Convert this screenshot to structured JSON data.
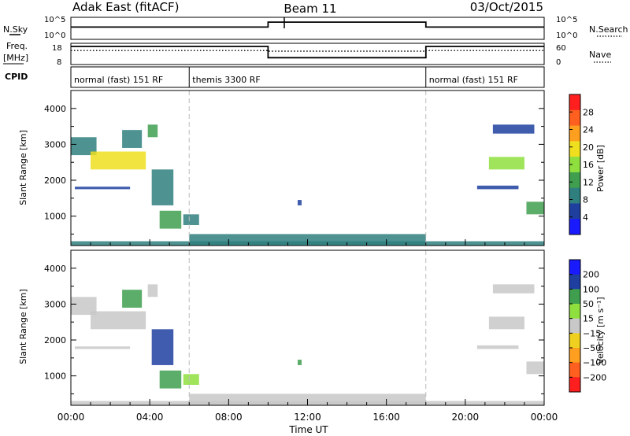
{
  "header": {
    "title": "Adak East (fitACF)",
    "beam": "Beam 11",
    "date": "03/Oct/2015"
  },
  "nsky_panel": {
    "left_label": "N.Sky",
    "right_label": "N.Search",
    "y_ticks": [
      "10^5",
      "10^0"
    ],
    "ylim": [
      1,
      100000
    ],
    "scale": "log"
  },
  "freq_panel": {
    "left_label_1": "Freq.",
    "left_label_2": "[MHz]",
    "right_label": "Nave",
    "left_ticks": [
      "18",
      "8"
    ],
    "right_ticks": [
      "60",
      "0"
    ]
  },
  "cpid_panel": {
    "label": "CPID",
    "segments": [
      {
        "start": 0,
        "end": 6,
        "text": "normal (fast) 151 RF"
      },
      {
        "start": 6,
        "end": 18,
        "text": "themis 3300 RF"
      },
      {
        "start": 18,
        "end": 24,
        "text": "normal (fast) 151 RF"
      }
    ]
  },
  "colors": {
    "power_scale": [
      "#1a1aff",
      "#1f3f9f",
      "#2f7f7f",
      "#3f9f4f",
      "#8fdf3f",
      "#efdf1f",
      "#ff9f1f",
      "#ff5f1f",
      "#ff1f1f"
    ],
    "velocity_scale": [
      "#ff1f1f",
      "#ff5f1f",
      "#ff9f1f",
      "#efcf1f",
      "#c8c8c8",
      "#8fdf3f",
      "#3f9f4f",
      "#1f3fa0",
      "#1a1aff"
    ],
    "grid_dash": "#bbbbbb"
  },
  "power_panel": {
    "ylabel": "Slant Range [km]",
    "y_ticks": [
      "4000",
      "3000",
      "2000",
      "1000"
    ],
    "colorbar_label": "Power [dB]",
    "colorbar_ticks": [
      "28",
      "24",
      "20",
      "16",
      "12",
      "8",
      "4"
    ]
  },
  "velocity_panel": {
    "ylabel": "Slant Range [km]",
    "y_ticks": [
      "4000",
      "3000",
      "2000",
      "1000"
    ],
    "colorbar_label": "Velocity [m s⁻¹]",
    "colorbar_ticks": [
      "200",
      "100",
      "50",
      "15",
      "−15",
      "−50",
      "−100",
      "−200"
    ]
  },
  "time_axis": {
    "xlabel": "Time UT",
    "ticks": [
      "00:00",
      "04:00",
      "08:00",
      "12:00",
      "16:00",
      "20:00",
      "00:00"
    ]
  },
  "chart_data": {
    "type": "heatmap",
    "title": "Adak East (fitACF)",
    "subtitle": "Beam 11",
    "date": "03/Oct/2015",
    "xlabel": "Time UT",
    "ylabel": "Slant Range [km]",
    "xlim_hours": [
      0,
      24
    ],
    "ylim_km": [
      180,
      4500
    ],
    "mode_change_hours": [
      6,
      18
    ],
    "nsky_series": [
      {
        "t": [
          0,
          10,
          10,
          18,
          18,
          24
        ],
        "v": [
          600,
          600,
          8000,
          8000,
          600,
          600
        ]
      }
    ],
    "freq_series": {
      "name": "Freq. [MHz]",
      "t": [
        0,
        10,
        10,
        18,
        18,
        24
      ],
      "v": [
        17.2,
        17.2,
        11.5,
        11.5,
        17.2,
        17.2
      ]
    },
    "nave_series": {
      "name": "Nave",
      "t": [
        0,
        10,
        10,
        18,
        18,
        24
      ],
      "v": [
        42,
        42,
        40,
        40,
        42,
        42
      ]
    },
    "echo_regions": [
      {
        "t0": 0.0,
        "t1": 1.3,
        "r0": 2700,
        "r1": 3200,
        "power": 10,
        "velocity": -5
      },
      {
        "t0": 1.0,
        "t1": 3.8,
        "r0": 2300,
        "r1": 2800,
        "power": 21,
        "velocity": 0
      },
      {
        "t0": 2.6,
        "t1": 3.6,
        "r0": 2900,
        "r1": 3400,
        "power": 8,
        "velocity": 150
      },
      {
        "t0": 3.9,
        "t1": 4.4,
        "r0": 3200,
        "r1": 3550,
        "power": 11,
        "velocity": 10
      },
      {
        "t0": 0.2,
        "t1": 3.0,
        "r0": 1750,
        "r1": 1820,
        "power": 7,
        "velocity": -3
      },
      {
        "t0": 4.1,
        "t1": 5.2,
        "r0": 1300,
        "r1": 2300,
        "power": 8,
        "velocity": 200
      },
      {
        "t0": 4.5,
        "t1": 5.6,
        "r0": 650,
        "r1": 1150,
        "power": 14,
        "velocity": 120
      },
      {
        "t0": 5.7,
        "t1": 6.5,
        "r0": 750,
        "r1": 1050,
        "power": 10,
        "velocity": 45
      },
      {
        "t0": 11.5,
        "t1": 11.7,
        "r0": 1300,
        "r1": 1450,
        "power": 6,
        "velocity": 150
      },
      {
        "t0": 6.0,
        "t1": 18.0,
        "r0": 200,
        "r1": 500,
        "power": 9,
        "velocity": -10
      },
      {
        "t0": 21.4,
        "t1": 23.5,
        "r0": 3300,
        "r1": 3550,
        "power": 6,
        "velocity": 5
      },
      {
        "t0": 21.2,
        "t1": 23.0,
        "r0": 2300,
        "r1": 2650,
        "power": 17,
        "velocity": -5
      },
      {
        "t0": 20.6,
        "t1": 22.7,
        "r0": 1750,
        "r1": 1850,
        "power": 7,
        "velocity": 0
      },
      {
        "t0": 23.1,
        "t1": 24.0,
        "r0": 1050,
        "r1": 1400,
        "power": 12,
        "velocity": -10
      },
      {
        "t0": 0.0,
        "t1": 24.0,
        "r0": 180,
        "r1": 300,
        "power": 9,
        "velocity": -20
      }
    ]
  }
}
